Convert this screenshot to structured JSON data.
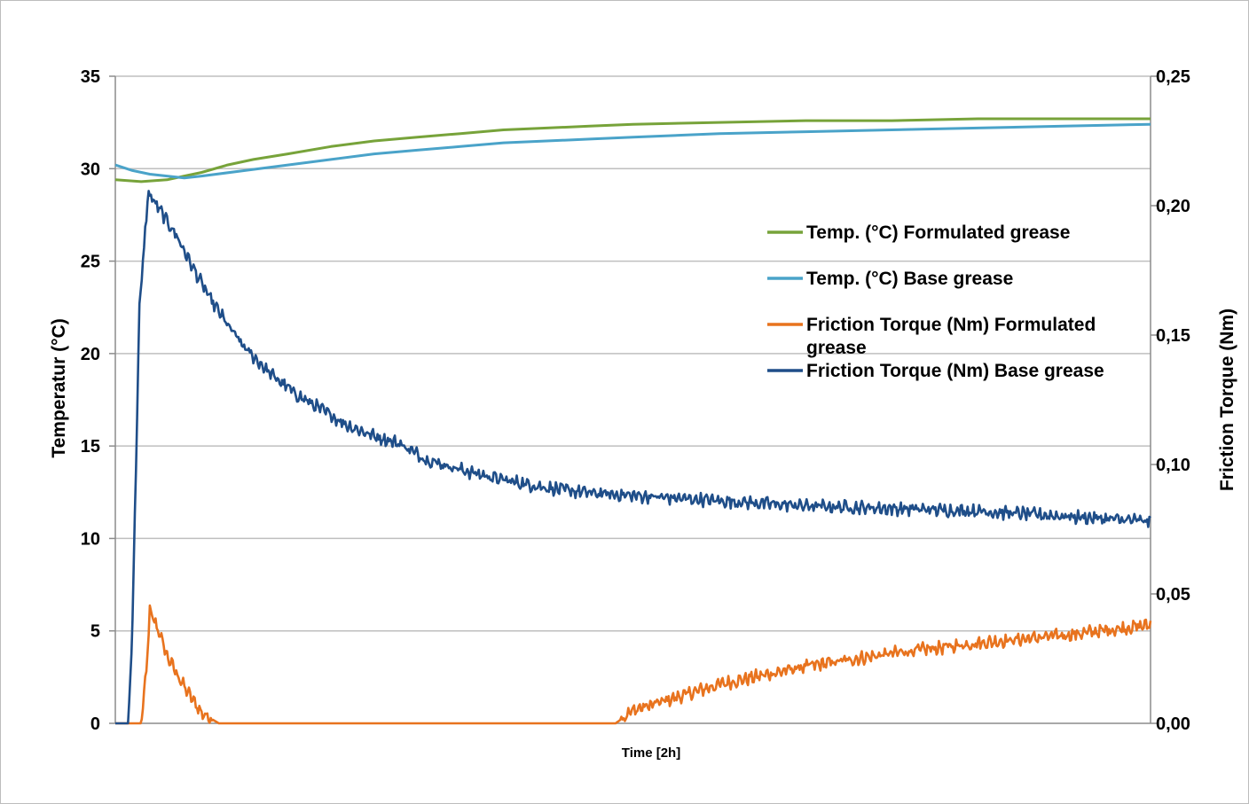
{
  "chart_data": {
    "type": "line",
    "title": "",
    "xlabel": "Time [2h]",
    "ylabel_left": "Temperatur (°C)",
    "ylabel_right": "Friction Torque (Nm)",
    "x_unit": "min",
    "xlim": [
      0,
      120
    ],
    "ylim_left": [
      0,
      35
    ],
    "ylim_right": [
      0,
      0.25
    ],
    "yticks_left": [
      "0",
      "5",
      "10",
      "15",
      "20",
      "25",
      "30",
      "35"
    ],
    "yticks_right": [
      "0,00",
      "0,05",
      "0,10",
      "0,15",
      "0,20",
      "0,25"
    ],
    "grid": true,
    "legend_position": "right",
    "series": [
      {
        "name": "Temp. (°C) Formulated  grease",
        "axis": "left",
        "color": "#77a33a",
        "x": [
          0,
          3,
          6,
          8,
          10,
          13,
          16,
          20,
          25,
          30,
          35,
          40,
          45,
          50,
          55,
          60,
          70,
          80,
          90,
          100,
          110,
          120
        ],
        "y": [
          29.4,
          29.3,
          29.4,
          29.6,
          29.8,
          30.2,
          30.5,
          30.8,
          31.2,
          31.5,
          31.7,
          31.9,
          32.1,
          32.2,
          32.3,
          32.4,
          32.5,
          32.6,
          32.6,
          32.7,
          32.7,
          32.7
        ]
      },
      {
        "name": "Temp. (°C) Base grease",
        "axis": "left",
        "color": "#4aa3c9",
        "x": [
          0,
          2,
          4,
          6,
          8,
          10,
          15,
          20,
          25,
          30,
          35,
          40,
          45,
          50,
          55,
          60,
          70,
          80,
          90,
          100,
          110,
          120
        ],
        "y": [
          30.2,
          29.9,
          29.7,
          29.6,
          29.5,
          29.6,
          29.9,
          30.2,
          30.5,
          30.8,
          31.0,
          31.2,
          31.4,
          31.5,
          31.6,
          31.7,
          31.9,
          32.0,
          32.1,
          32.2,
          32.3,
          32.4
        ]
      },
      {
        "name": "Friction Torque (Nm) Formulated grease",
        "axis": "right",
        "color": "#e8731e",
        "x": [
          0,
          2,
          3,
          3.6,
          4,
          5,
          6,
          8,
          10,
          12,
          13,
          58,
          60,
          70,
          80,
          90,
          100,
          110,
          120
        ],
        "y": [
          0,
          0,
          0,
          0.02,
          0.043,
          0.036,
          0.026,
          0.014,
          0.004,
          0,
          0,
          0,
          0.005,
          0.015,
          0.022,
          0.027,
          0.031,
          0.034,
          0.038
        ]
      },
      {
        "name": "Friction Torque (Nm) Base grease",
        "axis": "right",
        "color": "#1f4e89",
        "x": [
          0,
          1.5,
          2,
          2.8,
          3.8,
          5,
          7,
          9,
          11,
          13,
          15,
          18,
          21,
          24,
          27,
          30,
          33,
          36,
          40,
          45,
          50,
          55,
          60,
          70,
          80,
          90,
          100,
          110,
          120
        ],
        "y": [
          0,
          0,
          0.04,
          0.16,
          0.205,
          0.199,
          0.189,
          0.176,
          0.164,
          0.154,
          0.145,
          0.135,
          0.127,
          0.121,
          0.115,
          0.111,
          0.108,
          0.102,
          0.098,
          0.094,
          0.091,
          0.089,
          0.088,
          0.086,
          0.084,
          0.083,
          0.082,
          0.08,
          0.078
        ]
      }
    ]
  }
}
